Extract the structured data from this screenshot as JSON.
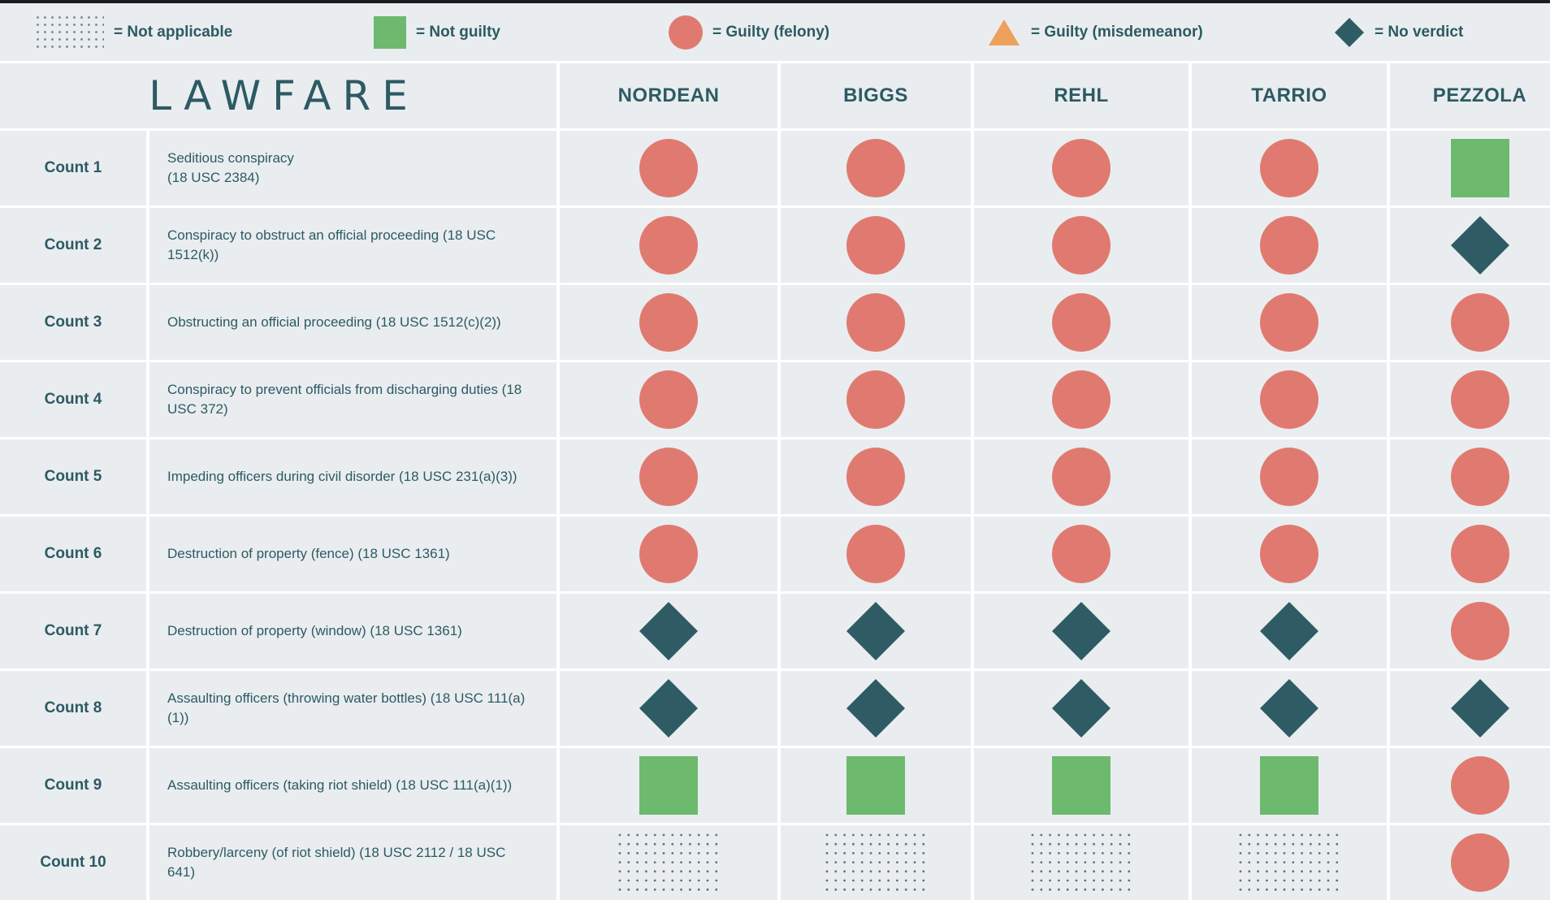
{
  "colors": {
    "not_guilty": "#6db96e",
    "guilty_felony": "#e07a70",
    "guilty_misdemeanor": "#eda15b",
    "no_verdict": "#2f5b64",
    "panel_bg": "#e9edf0",
    "text": "#2d5a63"
  },
  "legend": [
    {
      "symbol": "not_applicable",
      "label": "= Not applicable"
    },
    {
      "symbol": "not_guilty",
      "label": "= Not guilty"
    },
    {
      "symbol": "guilty_felony",
      "label": "= Guilty (felony)"
    },
    {
      "symbol": "guilty_misdemeanor",
      "label": "= Guilty (misdemeanor)"
    },
    {
      "symbol": "no_verdict",
      "label": "= No verdict"
    }
  ],
  "brand": "LAWFARE",
  "chart_data": {
    "type": "table",
    "columns": [
      "NORDEAN",
      "BIGGS",
      "REHL",
      "TARRIO",
      "PEZZOLA"
    ],
    "rows": [
      {
        "count": "Count 1",
        "description": "Seditious conspiracy\n(18 USC 2384)",
        "values": [
          "guilty_felony",
          "guilty_felony",
          "guilty_felony",
          "guilty_felony",
          "not_guilty"
        ]
      },
      {
        "count": "Count 2",
        "description": "Conspiracy to obstruct an official proceeding (18 USC 1512(k))",
        "values": [
          "guilty_felony",
          "guilty_felony",
          "guilty_felony",
          "guilty_felony",
          "no_verdict"
        ]
      },
      {
        "count": "Count 3",
        "description": "Obstructing an official proceeding (18 USC 1512(c)(2))",
        "values": [
          "guilty_felony",
          "guilty_felony",
          "guilty_felony",
          "guilty_felony",
          "guilty_felony"
        ]
      },
      {
        "count": "Count 4",
        "description": "Conspiracy to prevent officials from discharging duties (18 USC 372)",
        "values": [
          "guilty_felony",
          "guilty_felony",
          "guilty_felony",
          "guilty_felony",
          "guilty_felony"
        ]
      },
      {
        "count": "Count 5",
        "description": "Impeding officers during civil disorder (18 USC 231(a)(3))",
        "values": [
          "guilty_felony",
          "guilty_felony",
          "guilty_felony",
          "guilty_felony",
          "guilty_felony"
        ]
      },
      {
        "count": "Count 6",
        "description": "Destruction of property (fence) (18 USC 1361)",
        "values": [
          "guilty_felony",
          "guilty_felony",
          "guilty_felony",
          "guilty_felony",
          "guilty_felony"
        ]
      },
      {
        "count": "Count 7",
        "description": "Destruction of property (window) (18 USC 1361)",
        "values": [
          "no_verdict",
          "no_verdict",
          "no_verdict",
          "no_verdict",
          "guilty_felony"
        ]
      },
      {
        "count": "Count 8",
        "description": "Assaulting officers (throwing water bottles) (18 USC 111(a)(1))",
        "values": [
          "no_verdict",
          "no_verdict",
          "no_verdict",
          "no_verdict",
          "no_verdict"
        ]
      },
      {
        "count": "Count 9",
        "description": "Assaulting officers (taking riot shield) (18 USC 111(a)(1))",
        "values": [
          "not_guilty",
          "not_guilty",
          "not_guilty",
          "not_guilty",
          "guilty_felony"
        ]
      },
      {
        "count": "Count 10",
        "description": "Robbery/larceny (of riot shield) (18 USC 2112 / 18 USC 641)",
        "values": [
          "not_applicable",
          "not_applicable",
          "not_applicable",
          "not_applicable",
          "guilty_felony"
        ]
      }
    ]
  }
}
